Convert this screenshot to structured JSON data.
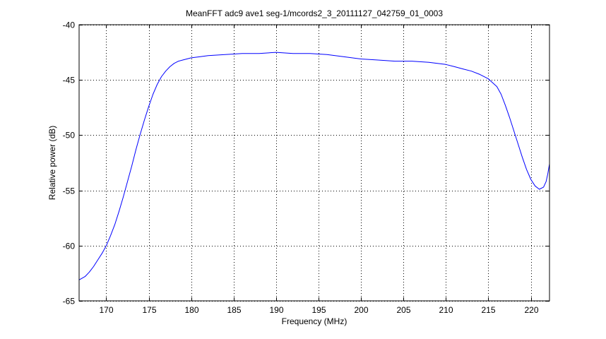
{
  "chart_data": {
    "type": "line",
    "title": "MeanFFT adc9 ave1 seg-1/mcords2_3_20111127_042759_01_0003",
    "xlabel": "Frequency (MHz)",
    "ylabel": "Relative power (dB)",
    "xlim": [
      166.8,
      222.2
    ],
    "ylim": [
      -65,
      -40
    ],
    "xticks": [
      170,
      175,
      180,
      185,
      190,
      195,
      200,
      205,
      210,
      215,
      220
    ],
    "yticks": [
      -65,
      -60,
      -55,
      -50,
      -45,
      -40
    ],
    "grid": true,
    "line_color": "#0000ff",
    "series": [
      {
        "x": [
          166.8,
          167.5,
          168.0,
          168.5,
          169.0,
          169.5,
          170.0,
          170.5,
          171.0,
          171.5,
          172.0,
          172.5,
          173.0,
          173.5,
          174.0,
          174.5,
          175.0,
          175.5,
          176.0,
          176.5,
          177.0,
          177.5,
          178.0,
          178.5,
          179.0,
          180.0,
          181.0,
          182.0,
          184.0,
          186.0,
          188.0,
          190.0,
          192.0,
          194.0,
          196.0,
          198.0,
          200.0,
          202.0,
          204.0,
          206.0,
          208.0,
          210.0,
          211.0,
          212.0,
          213.0,
          214.0,
          215.0,
          216.0,
          216.5,
          217.0,
          217.5,
          218.0,
          218.5,
          219.0,
          219.5,
          220.0,
          220.5,
          221.0,
          221.5,
          221.8,
          222.0,
          222.2
        ],
        "y": [
          -63.1,
          -62.8,
          -62.4,
          -61.9,
          -61.3,
          -60.7,
          -60.0,
          -59.1,
          -58.1,
          -56.9,
          -55.6,
          -54.2,
          -52.8,
          -51.3,
          -49.9,
          -48.6,
          -47.4,
          -46.3,
          -45.4,
          -44.7,
          -44.2,
          -43.8,
          -43.5,
          -43.3,
          -43.2,
          -43.0,
          -42.9,
          -42.8,
          -42.7,
          -42.6,
          -42.6,
          -42.5,
          -42.6,
          -42.6,
          -42.7,
          -42.9,
          -43.1,
          -43.2,
          -43.3,
          -43.3,
          -43.4,
          -43.6,
          -43.8,
          -44.0,
          -44.2,
          -44.5,
          -44.9,
          -45.6,
          -46.3,
          -47.3,
          -48.4,
          -49.6,
          -50.8,
          -52.0,
          -53.1,
          -54.0,
          -54.6,
          -54.9,
          -54.7,
          -54.2,
          -53.5,
          -52.6
        ]
      }
    ]
  }
}
